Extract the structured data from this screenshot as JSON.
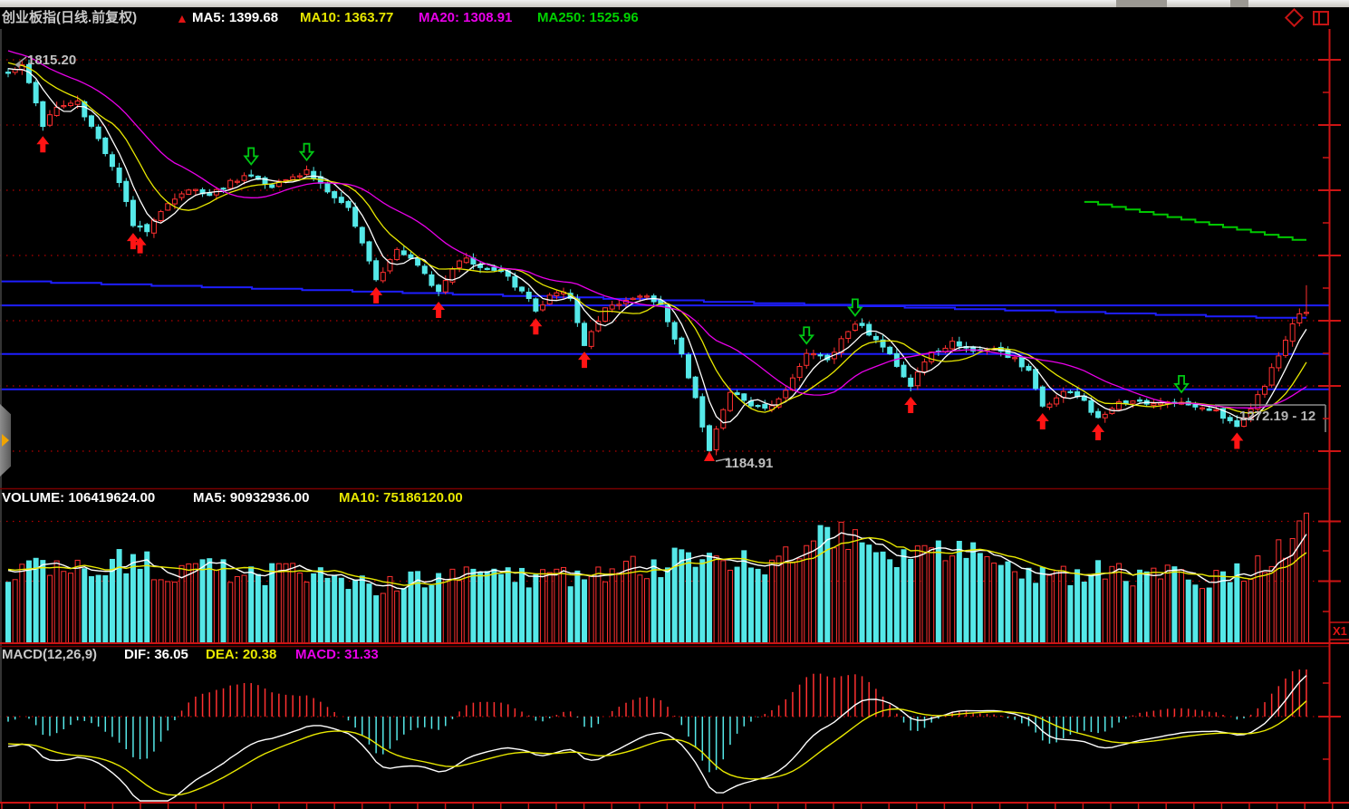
{
  "header": {
    "title": "创业板指(日线.前复权)",
    "trend_arrow": "▲",
    "ma5": "MA5: 1399.68",
    "ma10": "MA10: 1363.77",
    "ma20": "MA20: 1308.91",
    "ma250": "MA250: 1525.96"
  },
  "toolbar": {
    "icons": [
      "diamond-tool",
      "window-split"
    ]
  },
  "main_pane": {
    "high_label": "1815.20",
    "low_label": "1184.91",
    "range_label": "1272.19 - 12"
  },
  "volume_pane": {
    "volume": "VOLUME: 106419624.00",
    "ma5": "MA5: 90932936.00",
    "ma10": "MA10: 75186120.00"
  },
  "macd_pane": {
    "params": "MACD(12,26,9)",
    "dif": "DIF: 36.05",
    "dea": "DEA: 20.38",
    "macd": "MACD: 31.33"
  },
  "right_margin": {
    "zoom_label": "X1"
  },
  "colors": {
    "background": "#000000",
    "up": "#ff3030",
    "down": "#55e8e8",
    "ma5": "#ffffff",
    "ma10": "#e8e800",
    "ma20": "#e800e8",
    "ma250": "#00c800",
    "grid": "#b40000",
    "axis": "#cc1414",
    "blue": "#1e1eff",
    "buy": "#ff1414",
    "sell": "#00c814",
    "label": "#c0c0c0"
  },
  "chart_data": {
    "type": "candlestick",
    "instrument": "创业板指",
    "period": "日线",
    "adjustment": "前复权",
    "panes": [
      "price",
      "volume",
      "macd"
    ],
    "num_bars": 188,
    "indicators": {
      "price_ma": [
        5,
        10,
        20,
        250
      ],
      "volume_ma": [
        5,
        10
      ],
      "macd_params": [
        12,
        26,
        9
      ]
    },
    "price_pane": {
      "high": 1815.2,
      "low": 1184.91,
      "high_bar_index": 2,
      "low_bar_index": 101,
      "gridline_prices": [
        1815,
        1712,
        1608,
        1505,
        1402,
        1298,
        1195
      ],
      "blue_hlines": [
        1426,
        1349,
        1293
      ],
      "blue_trendline": {
        "from_bar": 0,
        "from_price": 1464,
        "to_bar": 187,
        "to_price": 1404
      },
      "ma250_segment": {
        "from_bar": 155,
        "from_price": 1590,
        "to_bar": 187,
        "to_price": 1526
      },
      "last_bar": {
        "close": 1415,
        "high": 1458
      }
    },
    "price_anchors": [
      [
        0,
        1790
      ],
      [
        2,
        1806
      ],
      [
        5,
        1712
      ],
      [
        7,
        1736
      ],
      [
        10,
        1748
      ],
      [
        13,
        1690
      ],
      [
        16,
        1620
      ],
      [
        18,
        1555
      ],
      [
        20,
        1545
      ],
      [
        23,
        1590
      ],
      [
        26,
        1612
      ],
      [
        29,
        1600
      ],
      [
        32,
        1620
      ],
      [
        35,
        1632
      ],
      [
        37,
        1615
      ],
      [
        40,
        1622
      ],
      [
        43,
        1638
      ],
      [
        46,
        1610
      ],
      [
        49,
        1580
      ],
      [
        52,
        1500
      ],
      [
        53,
        1465
      ],
      [
        56,
        1515
      ],
      [
        59,
        1490
      ],
      [
        62,
        1447
      ],
      [
        65,
        1500
      ],
      [
        68,
        1490
      ],
      [
        71,
        1480
      ],
      [
        74,
        1445
      ],
      [
        76,
        1420
      ],
      [
        79,
        1450
      ],
      [
        81,
        1440
      ],
      [
        83,
        1360
      ],
      [
        86,
        1420
      ],
      [
        89,
        1432
      ],
      [
        92,
        1442
      ],
      [
        94,
        1425
      ],
      [
        97,
        1345
      ],
      [
        99,
        1280
      ],
      [
        101,
        1195
      ],
      [
        104,
        1290
      ],
      [
        107,
        1270
      ],
      [
        110,
        1265
      ],
      [
        112,
        1290
      ],
      [
        115,
        1350
      ],
      [
        118,
        1340
      ],
      [
        120,
        1370
      ],
      [
        122,
        1400
      ],
      [
        125,
        1375
      ],
      [
        128,
        1330
      ],
      [
        130,
        1300
      ],
      [
        133,
        1350
      ],
      [
        136,
        1365
      ],
      [
        139,
        1355
      ],
      [
        142,
        1360
      ],
      [
        145,
        1340
      ],
      [
        147,
        1320
      ],
      [
        149,
        1262
      ],
      [
        152,
        1290
      ],
      [
        155,
        1275
      ],
      [
        157,
        1245
      ],
      [
        160,
        1272
      ],
      [
        163,
        1270
      ],
      [
        166,
        1268
      ],
      [
        169,
        1273
      ],
      [
        172,
        1265
      ],
      [
        174,
        1258
      ],
      [
        177,
        1235
      ],
      [
        179,
        1262
      ],
      [
        181,
        1300
      ],
      [
        183,
        1350
      ],
      [
        185,
        1395
      ],
      [
        186,
        1410
      ],
      [
        187,
        1415
      ]
    ],
    "volume_pane": {
      "gridlines_millions": [
        100,
        50
      ],
      "last_volume_millions": 106.4
    },
    "volume_anchors_millions": [
      [
        0,
        60
      ],
      [
        6,
        64
      ],
      [
        12,
        58
      ],
      [
        18,
        70
      ],
      [
        24,
        56
      ],
      [
        30,
        60
      ],
      [
        36,
        55
      ],
      [
        42,
        58
      ],
      [
        48,
        50
      ],
      [
        54,
        46
      ],
      [
        60,
        52
      ],
      [
        66,
        55
      ],
      [
        72,
        56
      ],
      [
        78,
        52
      ],
      [
        84,
        58
      ],
      [
        90,
        62
      ],
      [
        96,
        66
      ],
      [
        102,
        68
      ],
      [
        108,
        64
      ],
      [
        112,
        72
      ],
      [
        116,
        80
      ],
      [
        120,
        88
      ],
      [
        124,
        78
      ],
      [
        128,
        72
      ],
      [
        131,
        76
      ],
      [
        134,
        84
      ],
      [
        137,
        74
      ],
      [
        140,
        68
      ],
      [
        144,
        64
      ],
      [
        148,
        58
      ],
      [
        152,
        54
      ],
      [
        156,
        62
      ],
      [
        160,
        56
      ],
      [
        164,
        50
      ],
      [
        168,
        58
      ],
      [
        172,
        48
      ],
      [
        176,
        54
      ],
      [
        180,
        62
      ],
      [
        183,
        76
      ],
      [
        185,
        92
      ],
      [
        186,
        100
      ],
      [
        187,
        106.4
      ]
    ],
    "macd_values": {
      "dif": 36.05,
      "dea": 20.38,
      "macd": 31.33
    },
    "signals": {
      "buy_arrow_bars": [
        5,
        18,
        19,
        53,
        62,
        76,
        83,
        130,
        149,
        157,
        177
      ],
      "sell_arrow_bars": [
        35,
        43,
        115,
        122,
        169
      ]
    }
  }
}
